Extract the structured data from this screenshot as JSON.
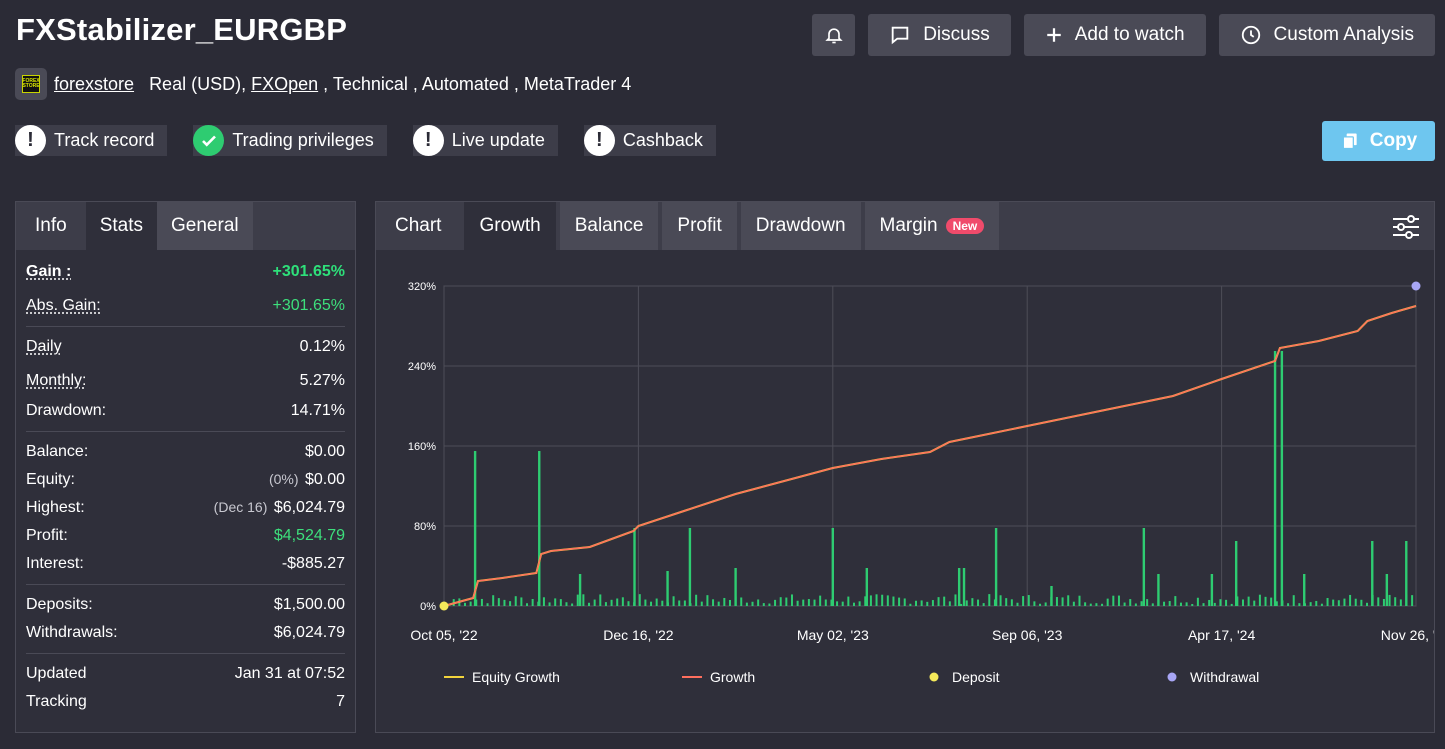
{
  "header": {
    "title": "FXStabilizer_EURGBP",
    "buttons": {
      "discuss": "Discuss",
      "add_watch": "Add to watch",
      "custom_analysis": "Custom Analysis"
    }
  },
  "meta": {
    "logo_text": "FOREX STORE",
    "user": "forexstore",
    "account": "Real (USD),",
    "broker": "FXOpen",
    "rest": " , Technical , Automated , MetaTrader 4"
  },
  "badges": [
    {
      "label": "Track record",
      "icon": "exclamation-icon"
    },
    {
      "label": "Trading privileges",
      "icon": "check-icon"
    },
    {
      "label": "Live update",
      "icon": "exclamation-icon"
    },
    {
      "label": "Cashback",
      "icon": "exclamation-icon"
    }
  ],
  "copy_label": "Copy",
  "stats_tabs": [
    "Info",
    "Stats",
    "General"
  ],
  "stats": {
    "gain_label": "Gain :",
    "gain": "+301.65%",
    "abs_gain_label": "Abs. Gain:",
    "abs_gain": "+301.65%",
    "daily_label": "Daily",
    "daily": "0.12%",
    "monthly_label": "Monthly:",
    "monthly": "5.27%",
    "drawdown_label": "Drawdown:",
    "drawdown": "14.71%",
    "balance_label": "Balance:",
    "balance": "$0.00",
    "equity_label": "Equity:",
    "equity_note": "(0%)",
    "equity": "$0.00",
    "highest_label": "Highest:",
    "highest_note": "(Dec 16)",
    "highest": "$6,024.79",
    "profit_label": "Profit:",
    "profit": "$4,524.79",
    "interest_label": "Interest:",
    "interest": "-$885.27",
    "deposits_label": "Deposits:",
    "deposits": "$1,500.00",
    "withdrawals_label": "Withdrawals:",
    "withdrawals": "$6,024.79",
    "updated_label": "Updated",
    "updated": "Jan 31 at 07:52",
    "tracking_label": "Tracking",
    "tracking": "7"
  },
  "chart_tabs": [
    "Chart",
    "Growth",
    "Balance",
    "Profit",
    "Drawdown",
    "Margin"
  ],
  "new_badge": "New",
  "colors": {
    "growth": "#ff6f5e",
    "equity": "#f2d43c",
    "bars": "#2ecc71",
    "deposit": "#f5ea5a",
    "withdrawal": "#a8a6f5"
  },
  "chart_data": {
    "type": "line",
    "y_ticks": [
      "0%",
      "80%",
      "160%",
      "240%",
      "320%"
    ],
    "ylim": [
      0,
      320
    ],
    "x_ticks": [
      "Oct 05, '22",
      "Dec 16, '22",
      "May 02, '23",
      "Sep 06, '23",
      "Apr 17, '24",
      "Nov 26, '24"
    ],
    "legend": [
      "Equity Growth",
      "Growth",
      "Deposit",
      "Withdrawal"
    ],
    "series": [
      {
        "name": "Growth",
        "x": [
          0,
          0.03,
          0.035,
          0.06,
          0.095,
          0.1,
          0.11,
          0.15,
          0.195,
          0.2,
          0.25,
          0.3,
          0.35,
          0.4,
          0.45,
          0.5,
          0.52,
          0.55,
          0.6,
          0.65,
          0.7,
          0.75,
          0.8,
          0.855,
          0.86,
          0.9,
          0.94,
          0.95,
          0.975,
          1.0
        ],
        "values": [
          0,
          8,
          25,
          28,
          33,
          52,
          55,
          59,
          75,
          80,
          96,
          112,
          125,
          138,
          147,
          154,
          164,
          170,
          180,
          190,
          200,
          210,
          227,
          245,
          258,
          265,
          275,
          285,
          293,
          300
        ]
      }
    ],
    "bars": [
      {
        "x": 0.032,
        "v": 155
      },
      {
        "x": 0.098,
        "v": 155
      },
      {
        "x": 0.14,
        "v": 32
      },
      {
        "x": 0.196,
        "v": 78
      },
      {
        "x": 0.23,
        "v": 35
      },
      {
        "x": 0.253,
        "v": 78
      },
      {
        "x": 0.3,
        "v": 38
      },
      {
        "x": 0.4,
        "v": 78
      },
      {
        "x": 0.435,
        "v": 38
      },
      {
        "x": 0.53,
        "v": 38
      },
      {
        "x": 0.535,
        "v": 38
      },
      {
        "x": 0.568,
        "v": 78
      },
      {
        "x": 0.625,
        "v": 20
      },
      {
        "x": 0.72,
        "v": 78
      },
      {
        "x": 0.735,
        "v": 32
      },
      {
        "x": 0.79,
        "v": 32
      },
      {
        "x": 0.815,
        "v": 65
      },
      {
        "x": 0.855,
        "v": 255
      },
      {
        "x": 0.862,
        "v": 255
      },
      {
        "x": 0.885,
        "v": 32
      },
      {
        "x": 0.955,
        "v": 65
      },
      {
        "x": 0.97,
        "v": 32
      },
      {
        "x": 0.99,
        "v": 65
      }
    ],
    "deposit_point": {
      "x": 0,
      "y": 0
    },
    "withdrawal_point": {
      "x": 1.0,
      "y": 320
    }
  }
}
